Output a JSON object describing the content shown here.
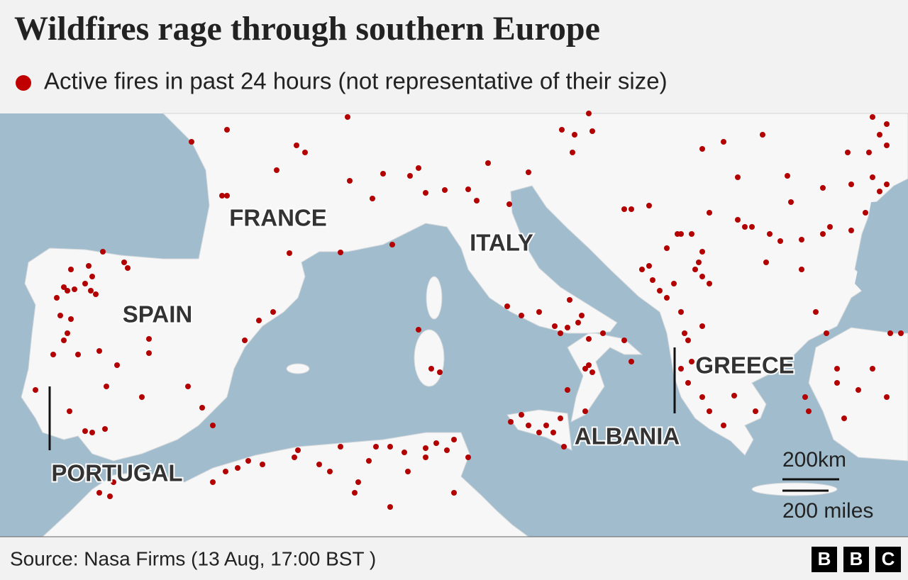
{
  "header": {
    "title": "Wildfires rage through southern Europe",
    "legend": "Active fires in past 24 hours (not representative of their size)"
  },
  "map": {
    "labels": [
      "FRANCE",
      "ITALY",
      "SPAIN",
      "GREECE",
      "ALBANIA",
      "PORTUGAL"
    ],
    "scale": {
      "km": "200km",
      "miles": "200 miles"
    }
  },
  "footer": {
    "source": "Source: Nasa Firms (13 Aug, 17:00 BST )",
    "logo": [
      "B",
      "B",
      "C"
    ]
  }
}
